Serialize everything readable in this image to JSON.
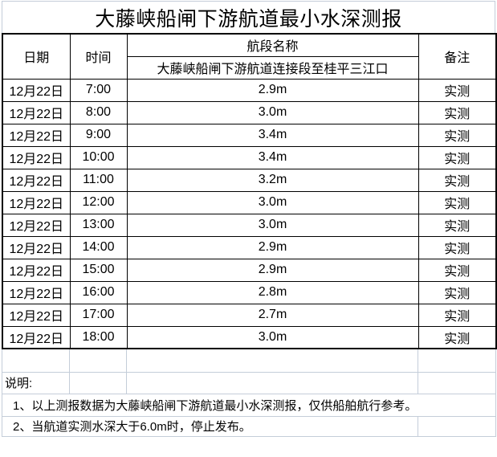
{
  "title": "大藤峡船闸下游航道最小水深测报",
  "table": {
    "headers": {
      "date": "日期",
      "time": "时间",
      "section": "航段名称",
      "section_name": "大藤峡船闸下游航道连接段至桂平三江口",
      "remark": "备注"
    },
    "rows": [
      {
        "date": "12月22日",
        "time": "7:00",
        "depth": "2.9m",
        "remark": "实测"
      },
      {
        "date": "12月22日",
        "time": "8:00",
        "depth": "3.0m",
        "remark": "实测"
      },
      {
        "date": "12月22日",
        "time": "9:00",
        "depth": "3.4m",
        "remark": "实测"
      },
      {
        "date": "12月22日",
        "time": "10:00",
        "depth": "3.4m",
        "remark": "实测"
      },
      {
        "date": "12月22日",
        "time": "11:00",
        "depth": "3.2m",
        "remark": "实测"
      },
      {
        "date": "12月22日",
        "time": "12:00",
        "depth": "3.0m",
        "remark": "实测"
      },
      {
        "date": "12月22日",
        "time": "13:00",
        "depth": "3.0m",
        "remark": "实测"
      },
      {
        "date": "12月22日",
        "time": "14:00",
        "depth": "2.9m",
        "remark": "实测"
      },
      {
        "date": "12月22日",
        "time": "15:00",
        "depth": "2.9m",
        "remark": "实测"
      },
      {
        "date": "12月22日",
        "time": "16:00",
        "depth": "2.8m",
        "remark": "实测"
      },
      {
        "date": "12月22日",
        "time": "17:00",
        "depth": "2.7m",
        "remark": "实测"
      },
      {
        "date": "12月22日",
        "time": "18:00",
        "depth": "3.0m",
        "remark": "实测"
      }
    ]
  },
  "notes": {
    "label": "说明:",
    "items": [
      "1、以上测报数据为大藤峡船闸下游航道最小水深测报，仅供船舶航行参考。",
      "2、当航道实测水深大于6.0m时，停止发布。"
    ]
  },
  "colors": {
    "table_border": "#000000",
    "gridline": "#c4cdd9",
    "text": "#000000",
    "background": "#ffffff"
  }
}
